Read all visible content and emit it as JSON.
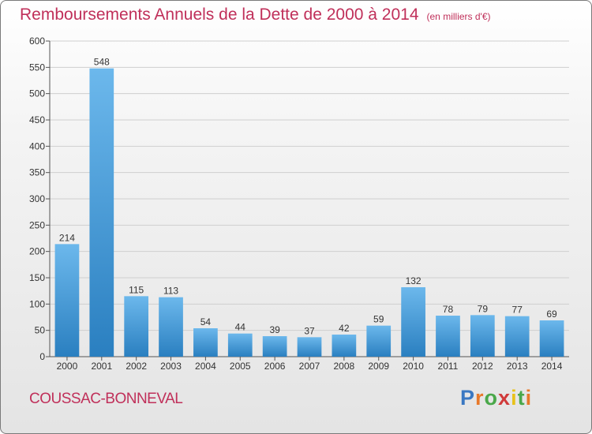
{
  "title": "Remboursements Annuels de la Dette de 2000 à 2014",
  "unit": "(en milliers d'€)",
  "commune": "COUSSAC-BONNEVAL",
  "logo": {
    "text": "Proxiti"
  },
  "colors": {
    "bar_light": "#6cb8ec",
    "bar_dark": "#2a7fc0",
    "title": "#c0305a",
    "grid": "#cfcfcf",
    "axis": "#555555"
  },
  "chart_data": {
    "type": "bar",
    "categories": [
      "2000",
      "2001",
      "2002",
      "2003",
      "2004",
      "2005",
      "2006",
      "2007",
      "2008",
      "2009",
      "2010",
      "2011",
      "2012",
      "2013",
      "2014"
    ],
    "values": [
      214,
      548,
      115,
      113,
      54,
      44,
      39,
      37,
      42,
      59,
      132,
      78,
      79,
      77,
      69
    ],
    "ylim": [
      0,
      600
    ],
    "yticks": [
      0,
      50,
      100,
      150,
      200,
      250,
      300,
      350,
      400,
      450,
      500,
      550,
      600
    ],
    "grid": true,
    "data_labels": true
  }
}
